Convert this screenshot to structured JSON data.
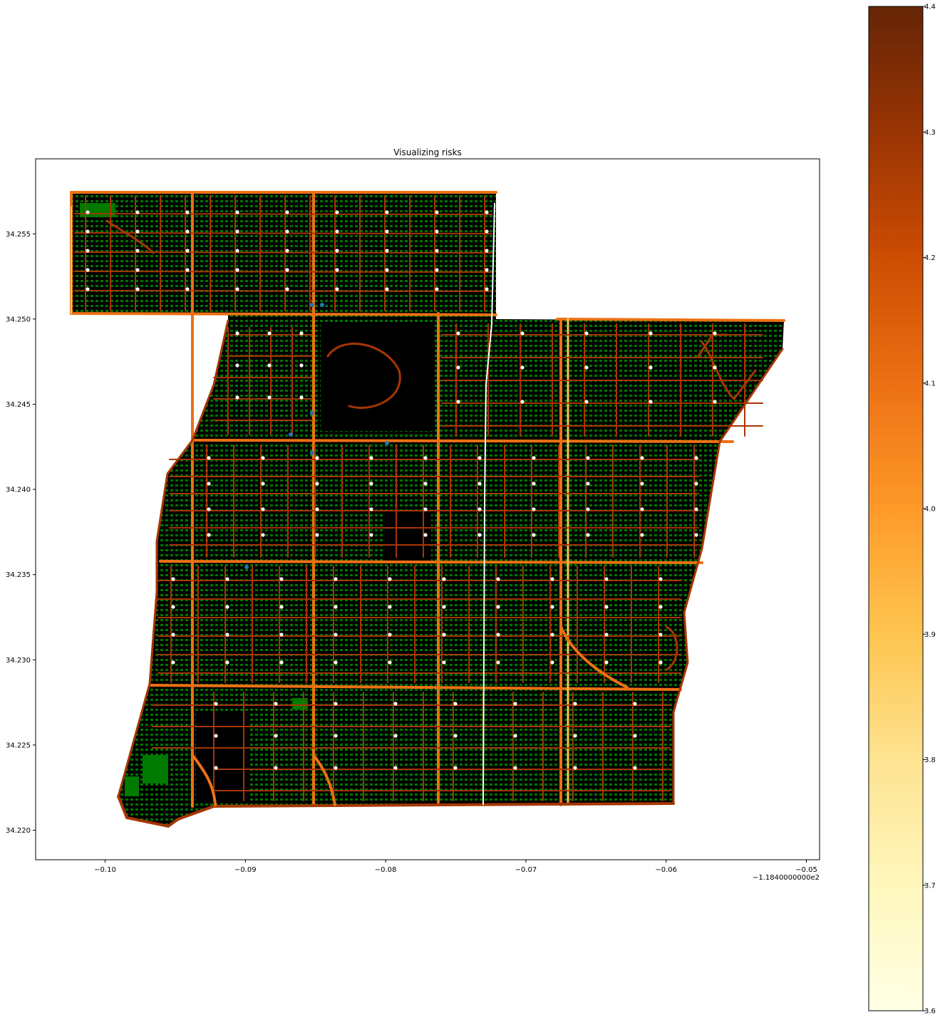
{
  "chart_data": {
    "type": "map",
    "title": "Visualizing risks",
    "xlabel": "",
    "ylabel": "",
    "xlim": [
      -118.4052,
      -118.3494
    ],
    "ylim": [
      34.2184,
      34.2594
    ],
    "x_offset_text": "−1.1840000000e2",
    "x_ticks": [
      {
        "value": -0.1,
        "label": "−0.10"
      },
      {
        "value": -0.09,
        "label": "−0.09"
      },
      {
        "value": -0.08,
        "label": "−0.08"
      },
      {
        "value": -0.07,
        "label": "−0.07"
      },
      {
        "value": -0.06,
        "label": "−0.06"
      },
      {
        "value": -0.05,
        "label": "−0.05"
      }
    ],
    "y_ticks": [
      {
        "value": 34.22,
        "label": "34.220"
      },
      {
        "value": 34.225,
        "label": "34.225"
      },
      {
        "value": 34.23,
        "label": "34.230"
      },
      {
        "value": 34.235,
        "label": "34.235"
      },
      {
        "value": 34.24,
        "label": "34.240"
      },
      {
        "value": 34.245,
        "label": "34.245"
      },
      {
        "value": 34.25,
        "label": "34.250"
      },
      {
        "value": 34.255,
        "label": "34.255"
      }
    ],
    "colorbar": {
      "colormap": "YlOrBr",
      "range": [
        3.6,
        4.4
      ],
      "ticks": [
        "3.6",
        "3.7",
        "3.8",
        "3.9",
        "4.0",
        "4.1",
        "4.2",
        "4.3",
        "4.4"
      ]
    },
    "layers": {
      "area_fill": "#000000",
      "buildings": "#007a00",
      "road_low_risk": "#fec44f",
      "road_mid_risk": "#ec7014",
      "road_high_risk": "#a63603",
      "nodes": "#ffffff",
      "highway": "#ffffff",
      "points": "#1f77b4"
    }
  }
}
